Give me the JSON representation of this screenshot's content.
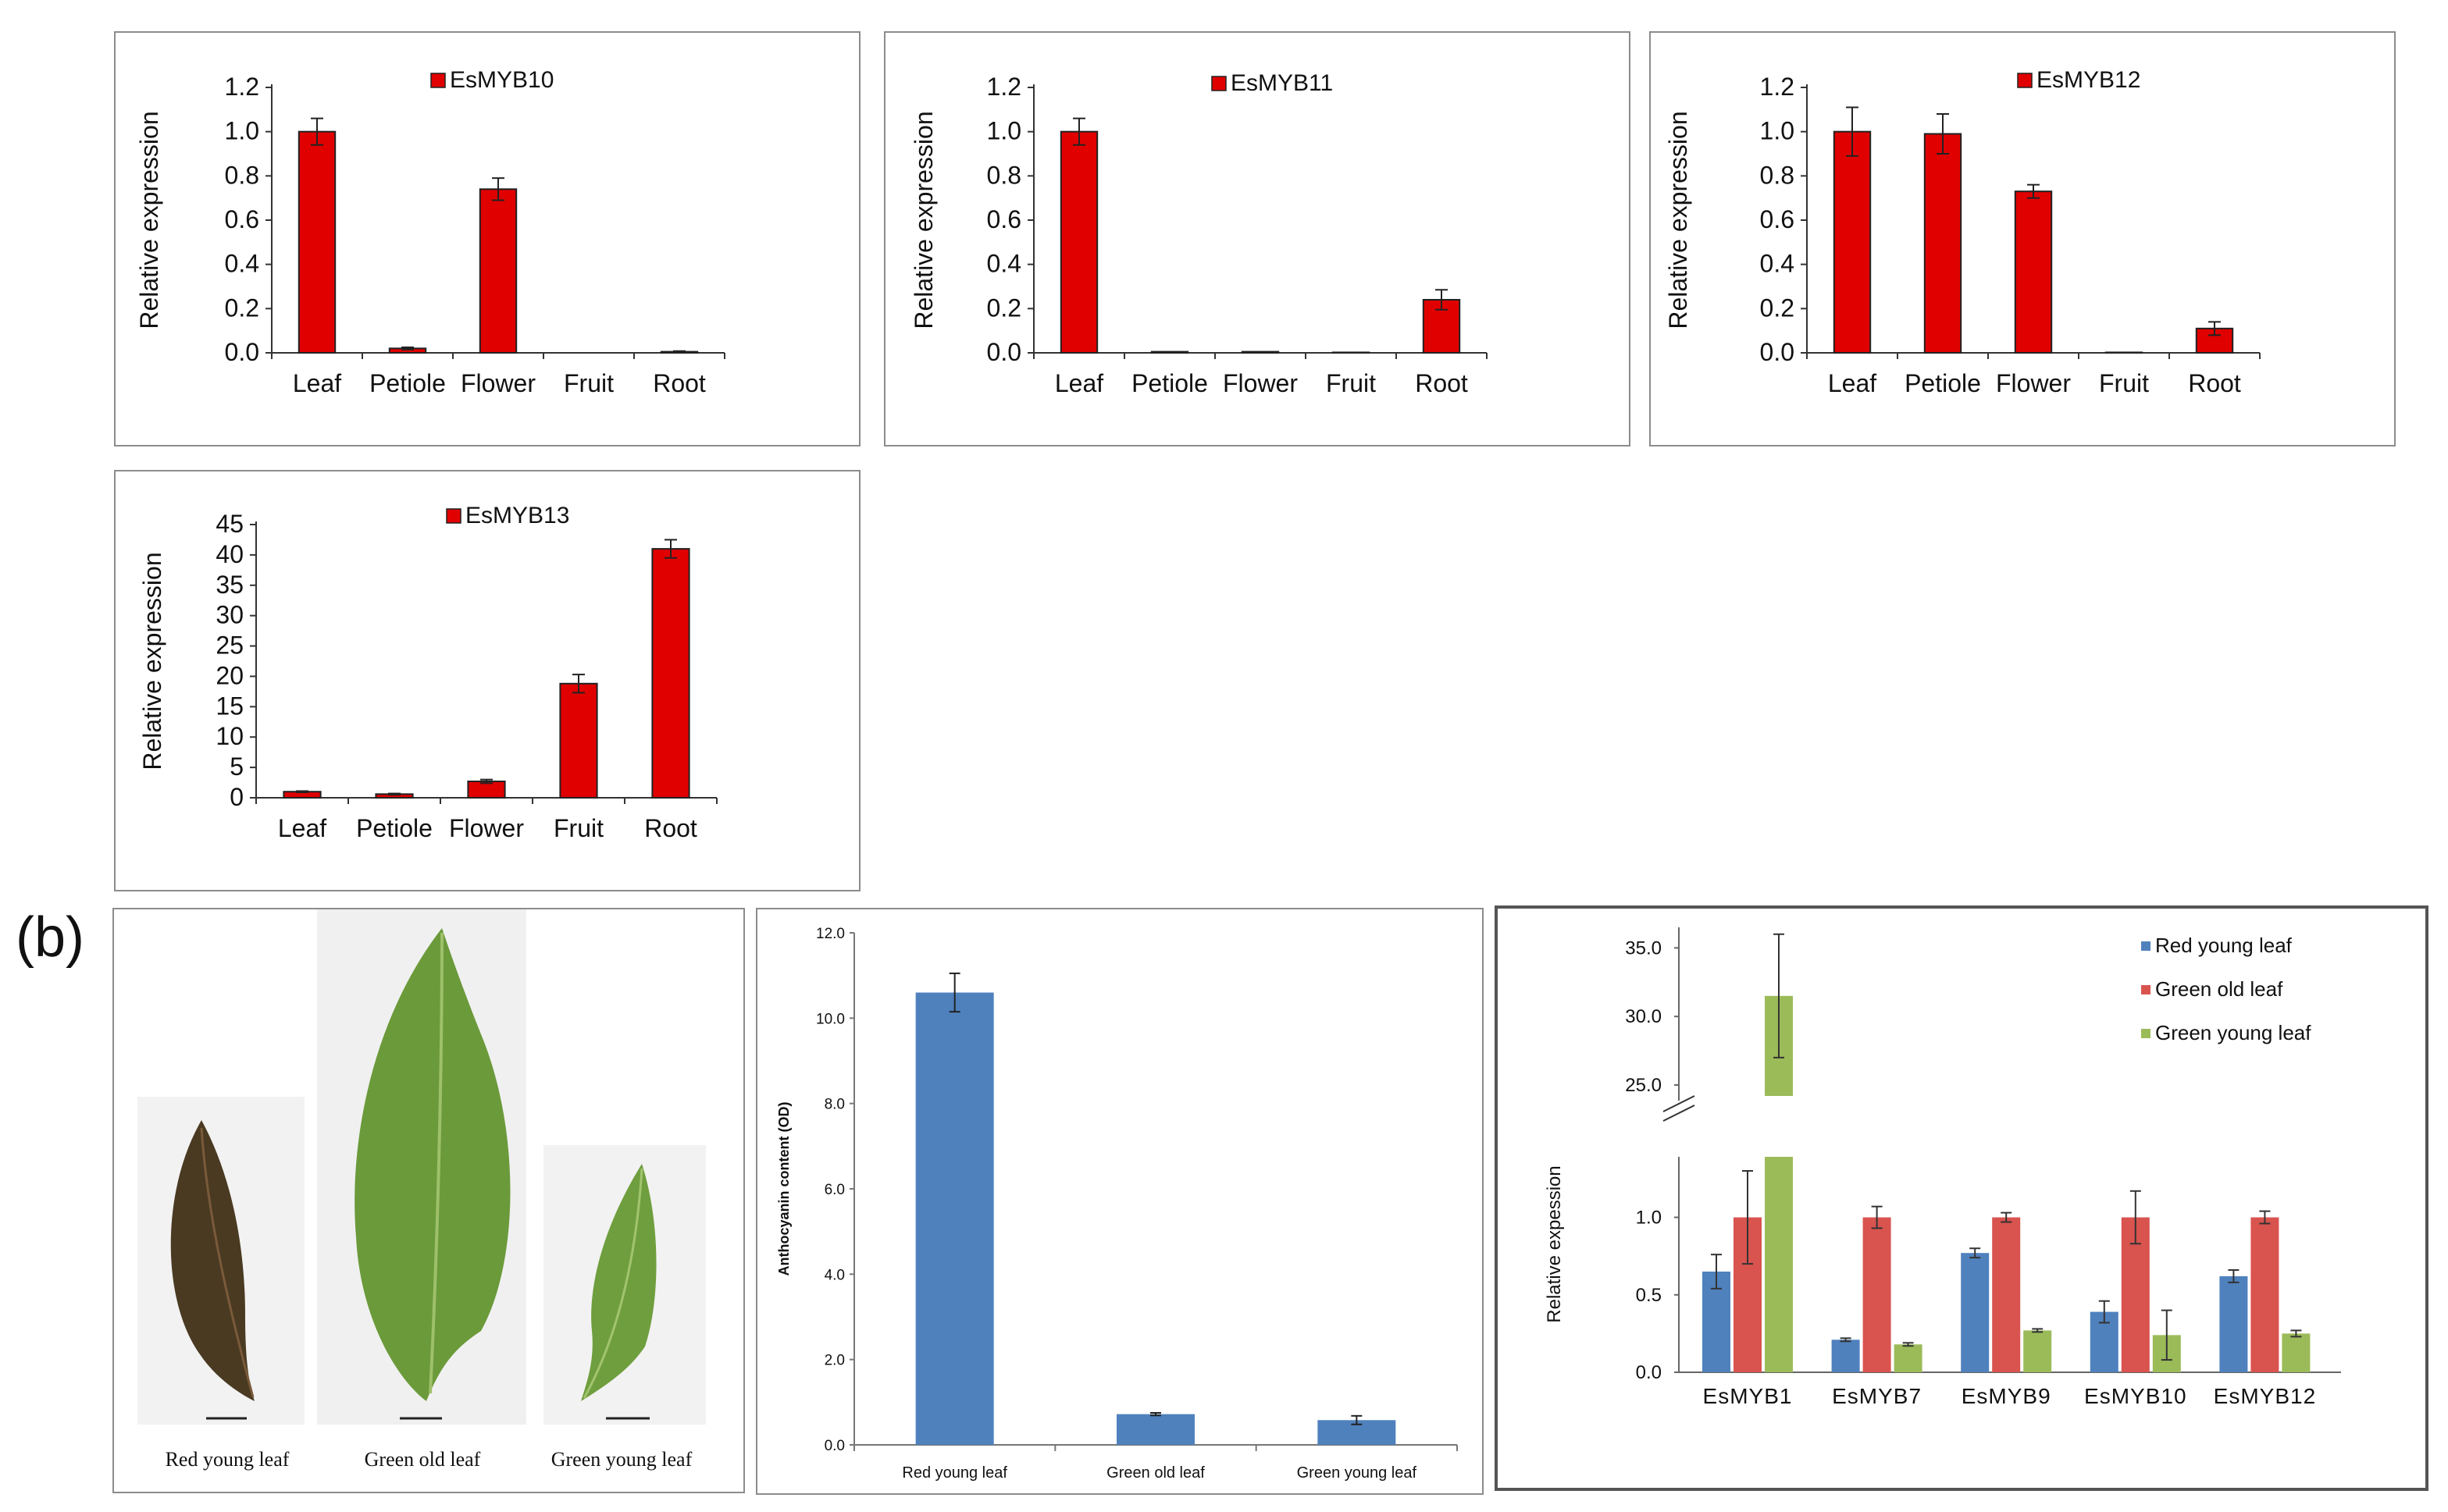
{
  "panel_label_b": "(b)",
  "colors": {
    "red_bar": "#e00000",
    "blue_bar": "#4f81bd",
    "red_series": "#d9534f",
    "green_series": "#9bbb59",
    "axis": "#333333"
  },
  "photo_captions": [
    "Red young leaf",
    "Green old leaf",
    "Green young leaf"
  ],
  "chart_data": [
    {
      "id": "esmyb10",
      "type": "bar",
      "legend": "EsMYB10",
      "ylabel": "Relative expression",
      "categories": [
        "Leaf",
        "Petiole",
        "Flower",
        "Fruit",
        "Root"
      ],
      "values": [
        1.0,
        0.02,
        0.74,
        0.0,
        0.005
      ],
      "errors": [
        0.06,
        0.005,
        0.05,
        0.0,
        0.003
      ],
      "ylim": [
        0,
        1.2
      ],
      "yticks": [
        "0.0",
        "0.2",
        "0.4",
        "0.6",
        "0.8",
        "1.0",
        "1.2"
      ]
    },
    {
      "id": "esmyb11",
      "type": "bar",
      "legend": "EsMYB11",
      "ylabel": "Relative expression",
      "categories": [
        "Leaf",
        "Petiole",
        "Flower",
        "Fruit",
        "Root"
      ],
      "values": [
        1.0,
        0.005,
        0.005,
        0.002,
        0.24
      ],
      "errors": [
        0.06,
        0.0,
        0.0,
        0.0,
        0.045
      ],
      "ylim": [
        0,
        1.2
      ],
      "yticks": [
        "0.0",
        "0.2",
        "0.4",
        "0.6",
        "0.8",
        "1.0",
        "1.2"
      ]
    },
    {
      "id": "esmyb12",
      "type": "bar",
      "legend": "EsMYB12",
      "ylabel": "Relative expression",
      "categories": [
        "Leaf",
        "Petiole",
        "Flower",
        "Fruit",
        "Root"
      ],
      "values": [
        1.0,
        0.99,
        0.73,
        0.002,
        0.11
      ],
      "errors": [
        0.11,
        0.09,
        0.03,
        0.0,
        0.03
      ],
      "ylim": [
        0,
        1.2
      ],
      "yticks": [
        "0.0",
        "0.2",
        "0.4",
        "0.6",
        "0.8",
        "1.0",
        "1.2"
      ]
    },
    {
      "id": "esmyb13",
      "type": "bar",
      "legend": "EsMYB13",
      "ylabel": "Relative expression",
      "categories": [
        "Leaf",
        "Petiole",
        "Flower",
        "Fruit",
        "Root"
      ],
      "values": [
        1.0,
        0.6,
        2.7,
        18.8,
        41.0
      ],
      "errors": [
        0.1,
        0.1,
        0.3,
        1.5,
        1.5
      ],
      "ylim": [
        0,
        45
      ],
      "yticks": [
        "0",
        "5",
        "10",
        "15",
        "20",
        "25",
        "30",
        "35",
        "40",
        "45"
      ]
    },
    {
      "id": "anthocyanin",
      "type": "bar",
      "ylabel": "Anthocyanin content (OD)",
      "categories": [
        "Red young leaf",
        "Green old leaf",
        "Green young leaf"
      ],
      "values": [
        10.6,
        0.72,
        0.58
      ],
      "errors": [
        0.45,
        0.03,
        0.1
      ],
      "ylim": [
        0,
        12
      ],
      "yticks": [
        "0.0",
        "2.0",
        "4.0",
        "6.0",
        "8.0",
        "10.0",
        "12.0"
      ]
    },
    {
      "id": "leafcolor",
      "type": "bar",
      "ylabel": "Relative expession",
      "categories": [
        "EsMYB1",
        "EsMYB7",
        "EsMYB9",
        "EsMYB10",
        "EsMYB12"
      ],
      "series": [
        {
          "name": "Red young leaf",
          "values": [
            0.65,
            0.21,
            0.77,
            0.39,
            0.62
          ],
          "errors": [
            0.11,
            0.01,
            0.03,
            0.07,
            0.04
          ]
        },
        {
          "name": "Green old leaf",
          "values": [
            1.0,
            1.0,
            1.0,
            1.0,
            1.0
          ],
          "errors": [
            0.3,
            0.07,
            0.03,
            0.17,
            0.04
          ]
        },
        {
          "name": "Green young leaf",
          "values": [
            31.5,
            0.18,
            0.27,
            0.24,
            0.25
          ],
          "errors": [
            4.5,
            0.01,
            0.01,
            0.16,
            0.02
          ]
        }
      ],
      "axis_break": [
        1.3,
        25.0
      ],
      "yticks_low": [
        "0.0",
        "0.5",
        "1.0"
      ],
      "yticks_high": [
        "25.0",
        "30.0",
        "35.0"
      ]
    }
  ]
}
